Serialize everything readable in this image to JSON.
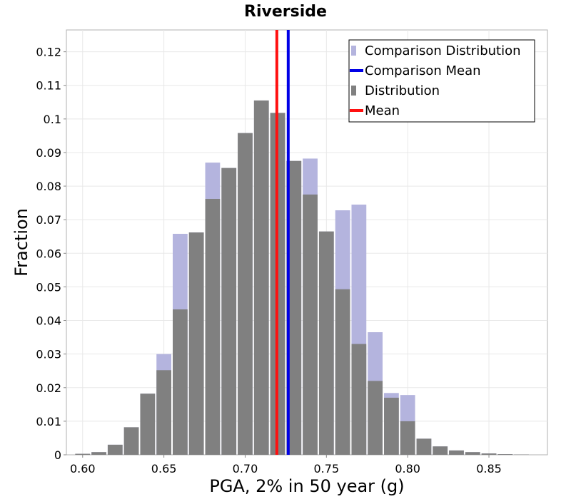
{
  "chart_data": {
    "type": "bar",
    "title": "Riverside",
    "xlabel": "PGA, 2% in 50 year (g)",
    "ylabel": "Fraction",
    "xlim": [
      0.59,
      0.886
    ],
    "ylim": [
      0,
      0.1265
    ],
    "bin_width": 0.01,
    "x_ticks": [
      "0.60",
      "0.65",
      "0.70",
      "0.75",
      "0.80",
      "0.85"
    ],
    "y_ticks": [
      "0",
      "0.01",
      "0.02",
      "0.03",
      "0.04",
      "0.05",
      "0.06",
      "0.07",
      "0.08",
      "0.09",
      "0.1",
      "0.11",
      "0.12"
    ],
    "grid": true,
    "legend_position": "top-right",
    "bin_centers": [
      0.6,
      0.61,
      0.62,
      0.63,
      0.64,
      0.65,
      0.66,
      0.67,
      0.68,
      0.69,
      0.7,
      0.71,
      0.72,
      0.73,
      0.74,
      0.75,
      0.76,
      0.77,
      0.78,
      0.79,
      0.8,
      0.81,
      0.82,
      0.83,
      0.84,
      0.85,
      0.86,
      0.87
    ],
    "series": [
      {
        "name": "Comparison Distribution",
        "color": "#b4b4de",
        "values": [
          0.0003,
          0.0008,
          0.003,
          0.0082,
          0.0182,
          0.03,
          0.0658,
          0.0662,
          0.087,
          0.0854,
          0.0958,
          0.1055,
          0.1018,
          0.0875,
          0.0882,
          0.0665,
          0.0728,
          0.0745,
          0.0365,
          0.0184,
          0.0178,
          0.0048,
          0.0025,
          0.0013,
          0.0008,
          0.0004,
          0.0002,
          0.0001
        ]
      },
      {
        "name": "Distribution",
        "color": "#808080",
        "values": [
          0.0003,
          0.0008,
          0.003,
          0.0082,
          0.0182,
          0.0252,
          0.0433,
          0.0662,
          0.0762,
          0.0854,
          0.0958,
          0.1055,
          0.1018,
          0.0875,
          0.0775,
          0.0665,
          0.0493,
          0.033,
          0.022,
          0.017,
          0.01,
          0.0048,
          0.0025,
          0.0013,
          0.0008,
          0.0004,
          0.0002,
          0.0001
        ]
      }
    ],
    "lines": [
      {
        "name": "Comparison Mean",
        "x": 0.7265,
        "color": "#0000e6"
      },
      {
        "name": "Mean",
        "x": 0.7195,
        "color": "#ff1010"
      }
    ],
    "legend": [
      {
        "label": "Comparison Distribution",
        "kind": "box",
        "color": "#b4b4de"
      },
      {
        "label": "Comparison Mean",
        "kind": "line",
        "color": "#0000e6"
      },
      {
        "label": "Distribution",
        "kind": "box",
        "color": "#808080"
      },
      {
        "label": "Mean",
        "kind": "line",
        "color": "#ff1010"
      }
    ]
  }
}
